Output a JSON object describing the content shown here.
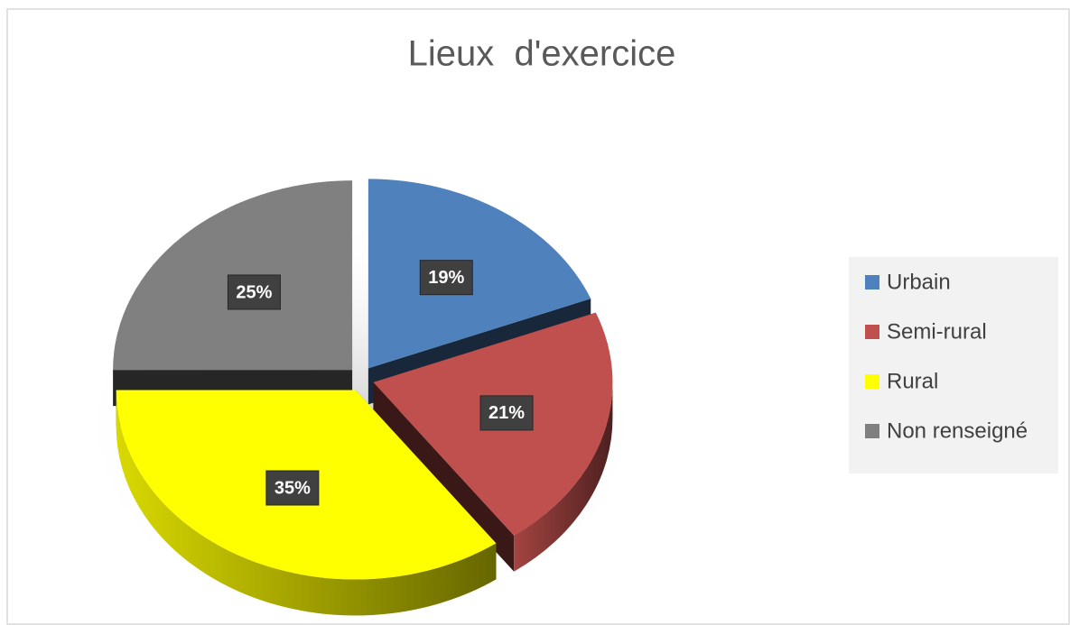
{
  "chart_data": {
    "type": "pie",
    "title": "Lieux  d'exercice",
    "categories": [
      "Urbain",
      "Semi-rural",
      "Rural",
      "Non renseigné"
    ],
    "values": [
      19,
      21,
      35,
      25
    ],
    "value_labels": [
      "19%",
      "21%",
      "35%",
      "25%"
    ],
    "colors": [
      "#4f81bd",
      "#c0504d",
      "#ffff00",
      "#808080"
    ],
    "legend": "right"
  }
}
